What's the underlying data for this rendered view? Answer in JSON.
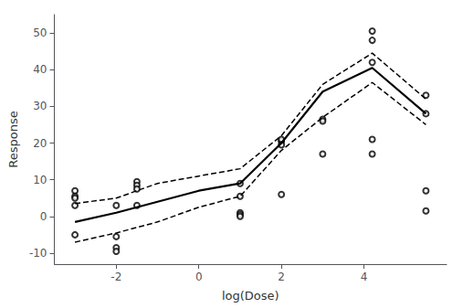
{
  "chart_data": {
    "type": "line",
    "xlabel": "log(Dose)",
    "ylabel": "Response",
    "xlim": [
      -3.5,
      6.0
    ],
    "ylim": [
      -13,
      55
    ],
    "xticks": [
      -2,
      0,
      2,
      4
    ],
    "yticks": [
      -10,
      0,
      10,
      20,
      30,
      40,
      50
    ],
    "grid": false,
    "series": [
      {
        "type": "scatter",
        "marker": "circle",
        "color": "#000000",
        "x": [
          -3.0,
          -3.0,
          -3.0,
          -3.0,
          -3.0,
          -2.0,
          -2.0,
          -2.0,
          -2.0,
          -1.5,
          -1.5,
          -1.5,
          -1.5,
          1.0,
          1.0,
          1.0,
          1.0,
          1.0,
          2.0,
          2.0,
          2.0,
          2.0,
          3.0,
          3.0,
          3.0,
          4.2,
          4.2,
          4.2,
          4.2,
          4.2,
          5.5,
          5.5,
          5.5,
          5.5
        ],
        "values": [
          7.0,
          5.5,
          5.0,
          3.0,
          -5.0,
          3.0,
          -5.5,
          -8.5,
          -9.5,
          9.5,
          8.5,
          7.5,
          3.0,
          9.0,
          1.0,
          0.5,
          0.0,
          5.5,
          6.0,
          20.5,
          21.0,
          19.5,
          17.0,
          26.5,
          26.0,
          50.5,
          48.0,
          42.0,
          21.0,
          17.0,
          33.0,
          28.0,
          7.0,
          1.5
        ]
      },
      {
        "type": "line",
        "line_style": "dashed",
        "color": "#000000",
        "x": [
          -3.0,
          -2.0,
          -1.0,
          0.0,
          1.0,
          2.0,
          3.0,
          4.2,
          5.5
        ],
        "values": [
          3.5,
          5.0,
          9.0,
          11.0,
          13.0,
          22.0,
          36.0,
          44.5,
          32.0
        ]
      },
      {
        "type": "line",
        "line_style": "dashed",
        "color": "#000000",
        "x": [
          -3.0,
          -2.0,
          -1.0,
          0.0,
          1.0,
          2.0,
          3.0,
          4.2,
          5.5
        ],
        "values": [
          -7.0,
          -4.5,
          -1.5,
          2.5,
          5.5,
          18.0,
          27.0,
          36.5,
          25.0
        ]
      },
      {
        "type": "line",
        "line_style": "solid",
        "color": "#000000",
        "x": [
          -3.0,
          -2.0,
          -1.0,
          0.0,
          1.0,
          2.0,
          3.0,
          4.2,
          5.5
        ],
        "values": [
          -1.5,
          1.0,
          4.0,
          7.0,
          9.0,
          20.0,
          34.0,
          40.5,
          28.0
        ]
      }
    ]
  }
}
